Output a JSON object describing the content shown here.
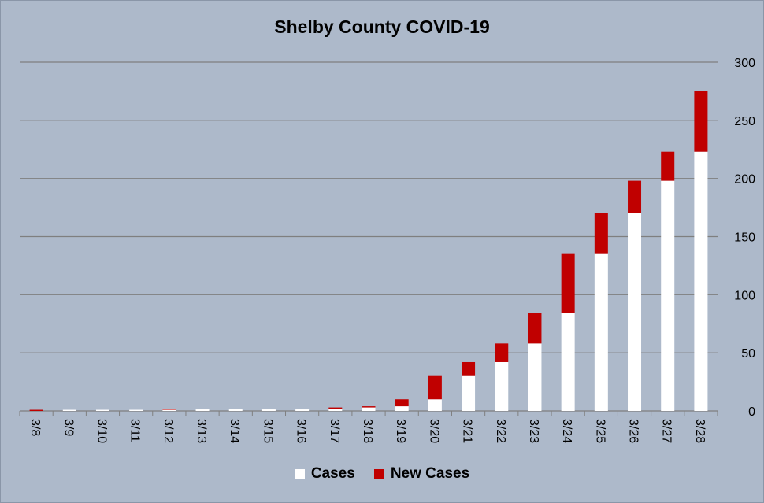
{
  "chart_data": {
    "type": "bar",
    "stacked": true,
    "title": "Shelby County COVID-19",
    "xlabel": "",
    "ylabel": "",
    "ylim": [
      0,
      300
    ],
    "yticks": [
      0,
      50,
      100,
      150,
      200,
      250,
      300
    ],
    "y_axis_side": "right",
    "grid": true,
    "legend_position": "bottom",
    "categories": [
      "3/8",
      "3/9",
      "3/10",
      "3/11",
      "3/12",
      "3/13",
      "3/14",
      "3/15",
      "3/16",
      "3/17",
      "3/18",
      "3/19",
      "3/20",
      "3/21",
      "3/22",
      "3/23",
      "3/24",
      "3/25",
      "3/26",
      "3/27",
      "3/28"
    ],
    "series": [
      {
        "name": "Cases",
        "color": "#ffffff",
        "values": [
          0,
          1,
          1,
          1,
          1,
          2,
          2,
          2,
          2,
          2,
          3,
          4,
          10,
          30,
          42,
          58,
          84,
          135,
          170,
          198,
          223
        ]
      },
      {
        "name": "New Cases",
        "color": "#c00000",
        "values": [
          1,
          0,
          0,
          0,
          1,
          0,
          0,
          0,
          0,
          1,
          1,
          6,
          20,
          12,
          16,
          26,
          51,
          35,
          28,
          25,
          52
        ]
      }
    ],
    "background": "#adb9ca",
    "gridline_color": "#7f7f7f"
  }
}
